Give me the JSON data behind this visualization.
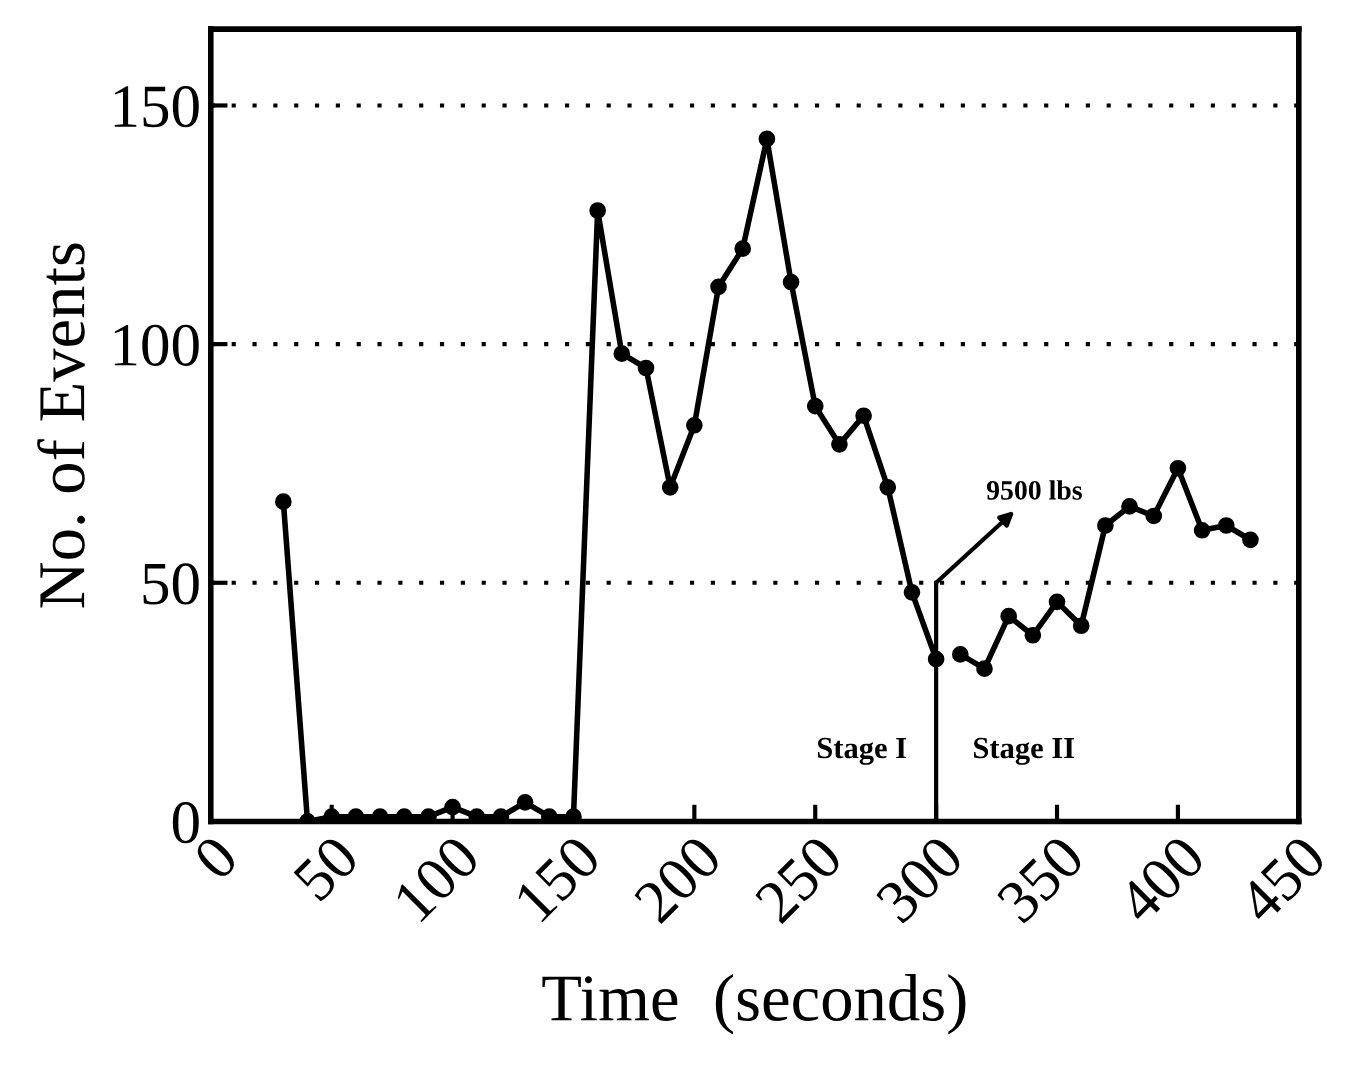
{
  "chart_data": {
    "type": "line",
    "xlabel": "Time  (seconds)",
    "ylabel": "No. of Events",
    "series": [
      {
        "color": "#000000",
        "x": [
          30,
          40,
          50,
          60,
          70,
          80,
          90,
          100,
          110,
          120,
          130,
          140,
          150,
          160,
          170,
          180,
          190,
          200,
          210,
          220,
          230,
          240,
          250,
          260,
          270,
          280,
          290,
          300
        ],
        "values": [
          67,
          0,
          1,
          1,
          1,
          1,
          1,
          3,
          1,
          1,
          4,
          1,
          1,
          128,
          98,
          95,
          70,
          83,
          112,
          120,
          143,
          113,
          87,
          79,
          85,
          70,
          48,
          34
        ]
      },
      {
        "color": "#000000",
        "x": [
          310,
          320,
          330,
          340,
          350,
          360,
          370,
          380,
          390,
          400,
          410,
          420,
          430
        ],
        "values": [
          35,
          32,
          43,
          39,
          46,
          41,
          62,
          66,
          64,
          74,
          61,
          62,
          59
        ]
      }
    ],
    "annotations": [
      {
        "text": "9500 lbs",
        "x": 300,
        "y": 50
      },
      "Stage I",
      "Stage II"
    ],
    "ref_lines": [
      {
        "axis": "x",
        "value": 300,
        "label": null
      }
    ],
    "xlim": [
      0,
      450
    ],
    "xticks": [
      0,
      50,
      100,
      150,
      200,
      250,
      300,
      350,
      400,
      450
    ],
    "ylim": [
      0,
      166
    ],
    "yticks": [
      0,
      50,
      100,
      150
    ],
    "grid": "y",
    "marker": "circle",
    "line_style": "solid",
    "legend": false
  }
}
